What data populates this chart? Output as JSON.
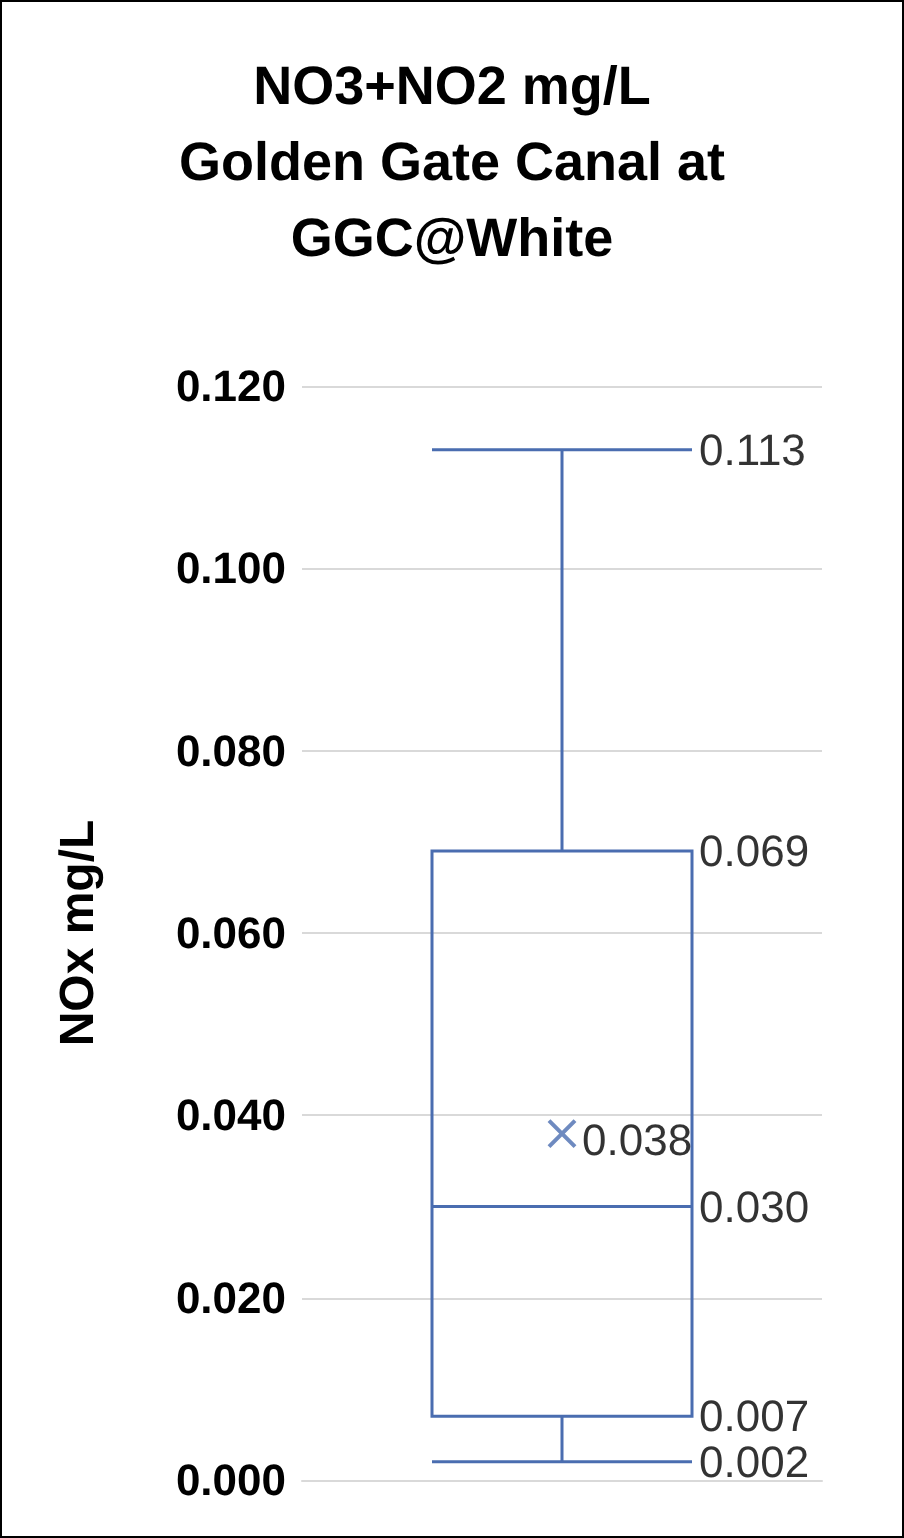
{
  "chart_data": {
    "type": "box",
    "title": "NO3+NO2 mg/L\nGolden Gate Canal at\nGGC@White",
    "ylabel": "NOx mg/L",
    "categories": [
      null
    ],
    "series": [
      {
        "color": "#4a6db0",
        "boxes": [
          {
            "low": 0.002,
            "q1": 0.007,
            "median": 0.03,
            "q3": 0.069,
            "high": 0.113,
            "mean": 0.038
          }
        ]
      }
    ],
    "annotations": [
      "0.113",
      "0.069",
      "0.038",
      "0.030",
      "0.007",
      "0.002"
    ],
    "ylim": [
      0,
      0.12
    ],
    "yticks": [
      {
        "value": 0,
        "label": "0.000"
      },
      {
        "value": 0.02,
        "label": "0.020"
      },
      {
        "value": 0.04,
        "label": "0.040"
      },
      {
        "value": 0.06,
        "label": "0.060"
      },
      {
        "value": 0.08,
        "label": "0.080"
      },
      {
        "value": 0.1,
        "label": "0.100"
      },
      {
        "value": 0.12,
        "label": "0.120"
      }
    ],
    "grid": "y",
    "marker": "cross"
  }
}
